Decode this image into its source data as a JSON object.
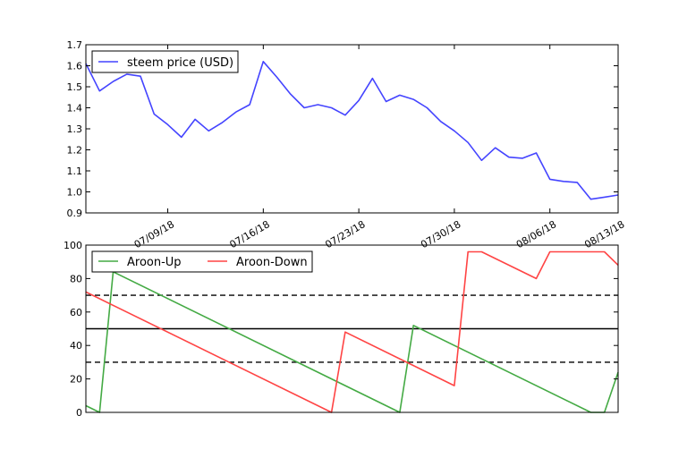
{
  "chart_data": [
    {
      "type": "line",
      "title": "",
      "xlabel": "",
      "ylabel": "",
      "ylim": [
        0.9,
        1.7
      ],
      "yticks": [
        "0.9",
        "1.0",
        "1.1",
        "1.2",
        "1.3",
        "1.4",
        "1.5",
        "1.6",
        "1.7"
      ],
      "xticks": [
        "07/09/18",
        "07/16/18",
        "07/23/18",
        "07/30/18",
        "08/06/18",
        "08/13/18"
      ],
      "legend_position": "top-left",
      "series": [
        {
          "name": "steem price (USD)",
          "color": "#4444ff",
          "values": [
            1.61,
            1.48,
            1.525,
            1.56,
            1.55,
            1.37,
            1.32,
            1.26,
            1.345,
            1.29,
            1.33,
            1.38,
            1.415,
            1.62,
            1.545,
            1.465,
            1.4,
            1.415,
            1.4,
            1.365,
            1.435,
            1.54,
            1.43,
            1.46,
            1.44,
            1.4,
            1.335,
            1.29,
            1.235,
            1.15,
            1.21,
            1.165,
            1.16,
            1.185,
            1.06,
            1.05,
            1.045,
            0.965,
            0.975,
            0.985
          ]
        }
      ]
    },
    {
      "type": "line",
      "title": "",
      "xlabel": "",
      "ylabel": "",
      "ylim": [
        0,
        100
      ],
      "yticks": [
        "0",
        "20",
        "40",
        "60",
        "80",
        "100"
      ],
      "hlines": [
        {
          "value": 70,
          "style": "dashed"
        },
        {
          "value": 50,
          "style": "solid"
        },
        {
          "value": 30,
          "style": "dashed"
        }
      ],
      "legend_position": "top-left",
      "series": [
        {
          "name": "Aroon-Up",
          "color": "#44aa44",
          "points": [
            [
              0,
              4
            ],
            [
              1,
              0
            ],
            [
              2,
              84
            ],
            [
              23,
              0
            ],
            [
              24,
              52
            ],
            [
              37,
              0
            ],
            [
              38,
              0
            ],
            [
              39,
              24
            ]
          ]
        },
        {
          "name": "Aroon-Down",
          "color": "#ff4444",
          "points": [
            [
              0,
              72
            ],
            [
              18,
              0
            ],
            [
              19,
              48
            ],
            [
              27,
              16
            ],
            [
              28,
              96
            ],
            [
              29,
              96
            ],
            [
              33,
              80
            ],
            [
              34,
              96
            ],
            [
              38,
              96
            ],
            [
              39,
              88
            ]
          ]
        }
      ]
    }
  ]
}
